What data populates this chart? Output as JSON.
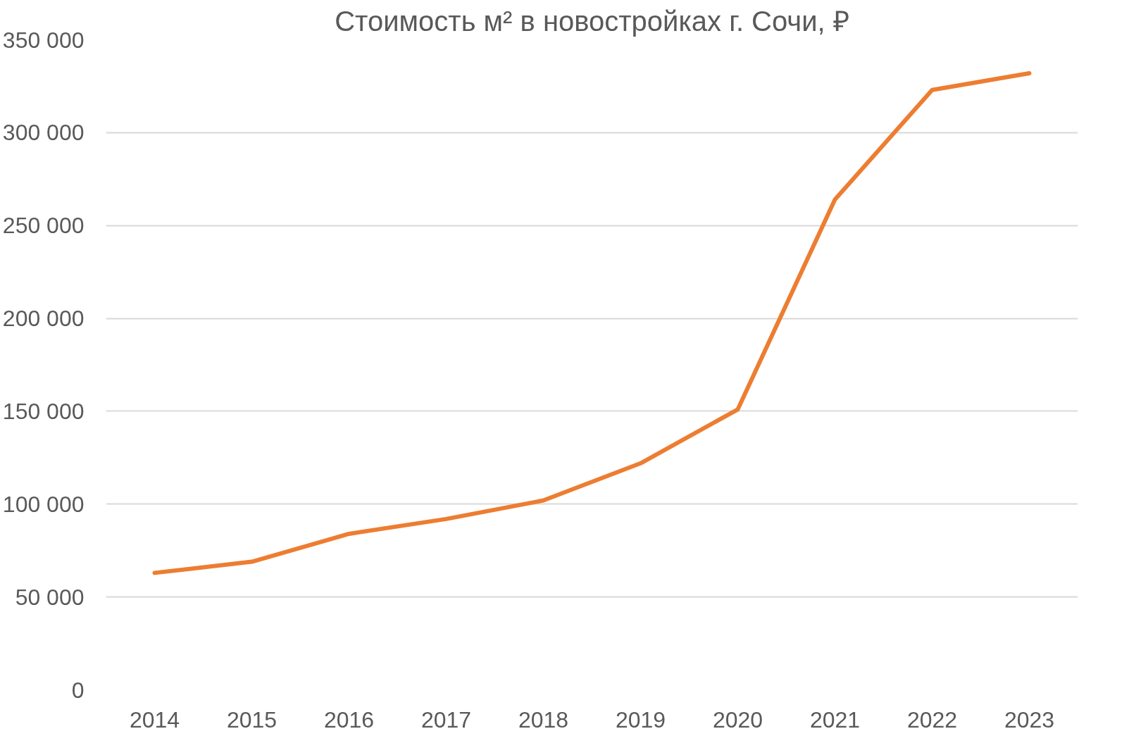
{
  "chart_data": {
    "type": "line",
    "title": "Стоимость м² в новостройках г. Сочи, ₽",
    "categories": [
      "2014",
      "2015",
      "2016",
      "2017",
      "2018",
      "2019",
      "2020",
      "2021",
      "2022",
      "2023"
    ],
    "series": [
      {
        "color": "#ed7d31",
        "values": [
          63000,
          69000,
          84000,
          92000,
          102000,
          122000,
          151000,
          264000,
          323000,
          332000
        ]
      }
    ],
    "ylim": [
      0,
      350000
    ],
    "yticks": [
      {
        "value": 0,
        "label": "0"
      },
      {
        "value": 50000,
        "label": "50 000"
      },
      {
        "value": 100000,
        "label": "100 000"
      },
      {
        "value": 150000,
        "label": "150 000"
      },
      {
        "value": 200000,
        "label": "200 000"
      },
      {
        "value": 250000,
        "label": "250 000"
      },
      {
        "value": 300000,
        "label": "300 000"
      },
      {
        "value": 350000,
        "label": "350 000"
      }
    ],
    "grid": "y",
    "line_style": "solid",
    "marker": "none"
  }
}
